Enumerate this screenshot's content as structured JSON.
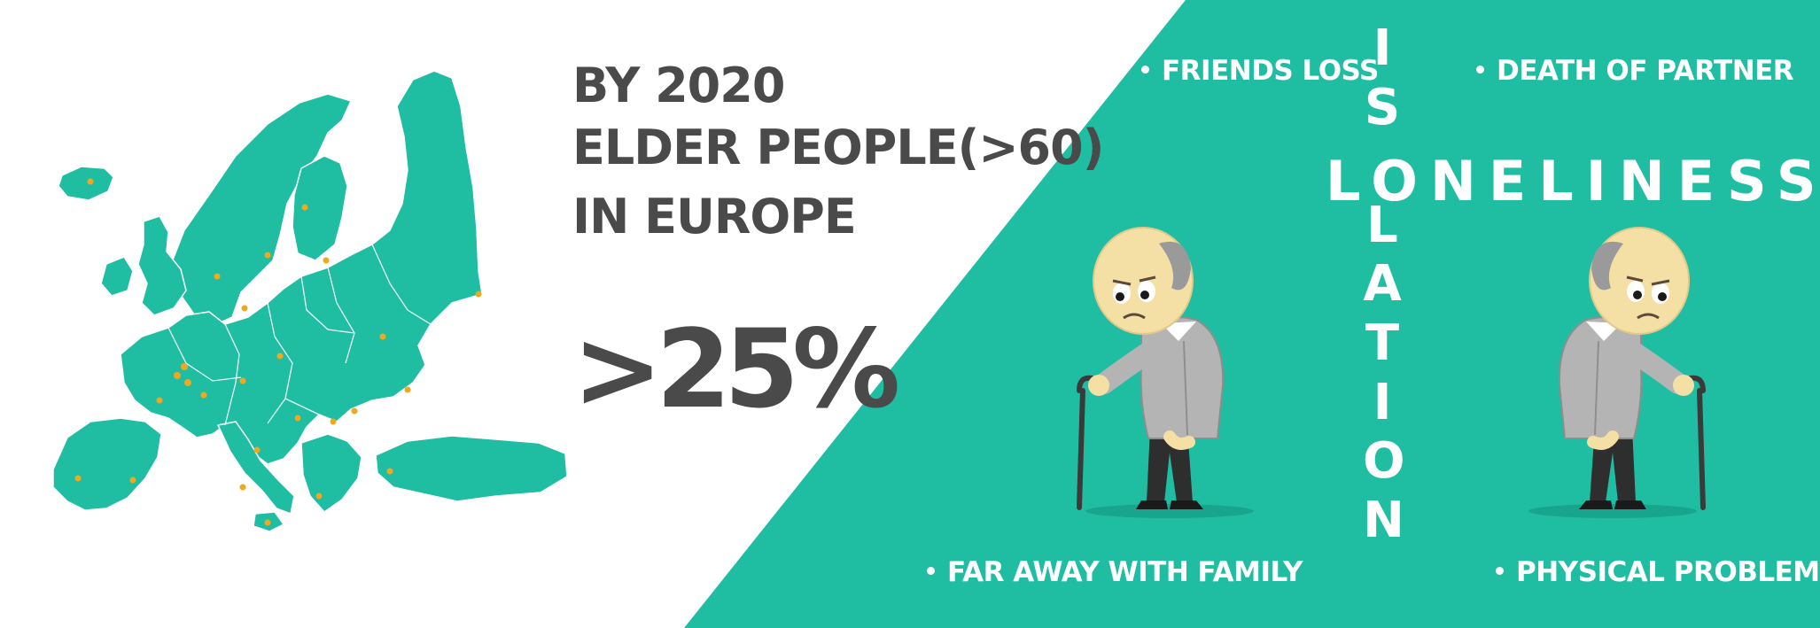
{
  "colors": {
    "teal": "#1fbea3",
    "text_dark": "#4a4a4a",
    "white": "#ffffff",
    "city_dot": "#f0a820"
  },
  "headline": {
    "line1": "BY 2020",
    "line2": "ELDER PEOPLE(>60)",
    "line3": "IN EUROPE"
  },
  "statistic": ">25%",
  "causes": {
    "top_left": "FRIENDS LOSS",
    "top_right": "DEATH OF PARTNER",
    "bottom_left": "FAR AWAY WITH FAMILY",
    "bottom_right": "PHYSICAL PROBLEM"
  },
  "crossword": {
    "horizontal": "LONELINESS",
    "vertical": [
      "I",
      "S",
      "O",
      "L",
      "A",
      "T",
      "I",
      "O",
      "N"
    ]
  },
  "illustrations": [
    "europe-map",
    "sad-elderly-man-with-cane",
    "sad-elderly-man-with-cane"
  ]
}
